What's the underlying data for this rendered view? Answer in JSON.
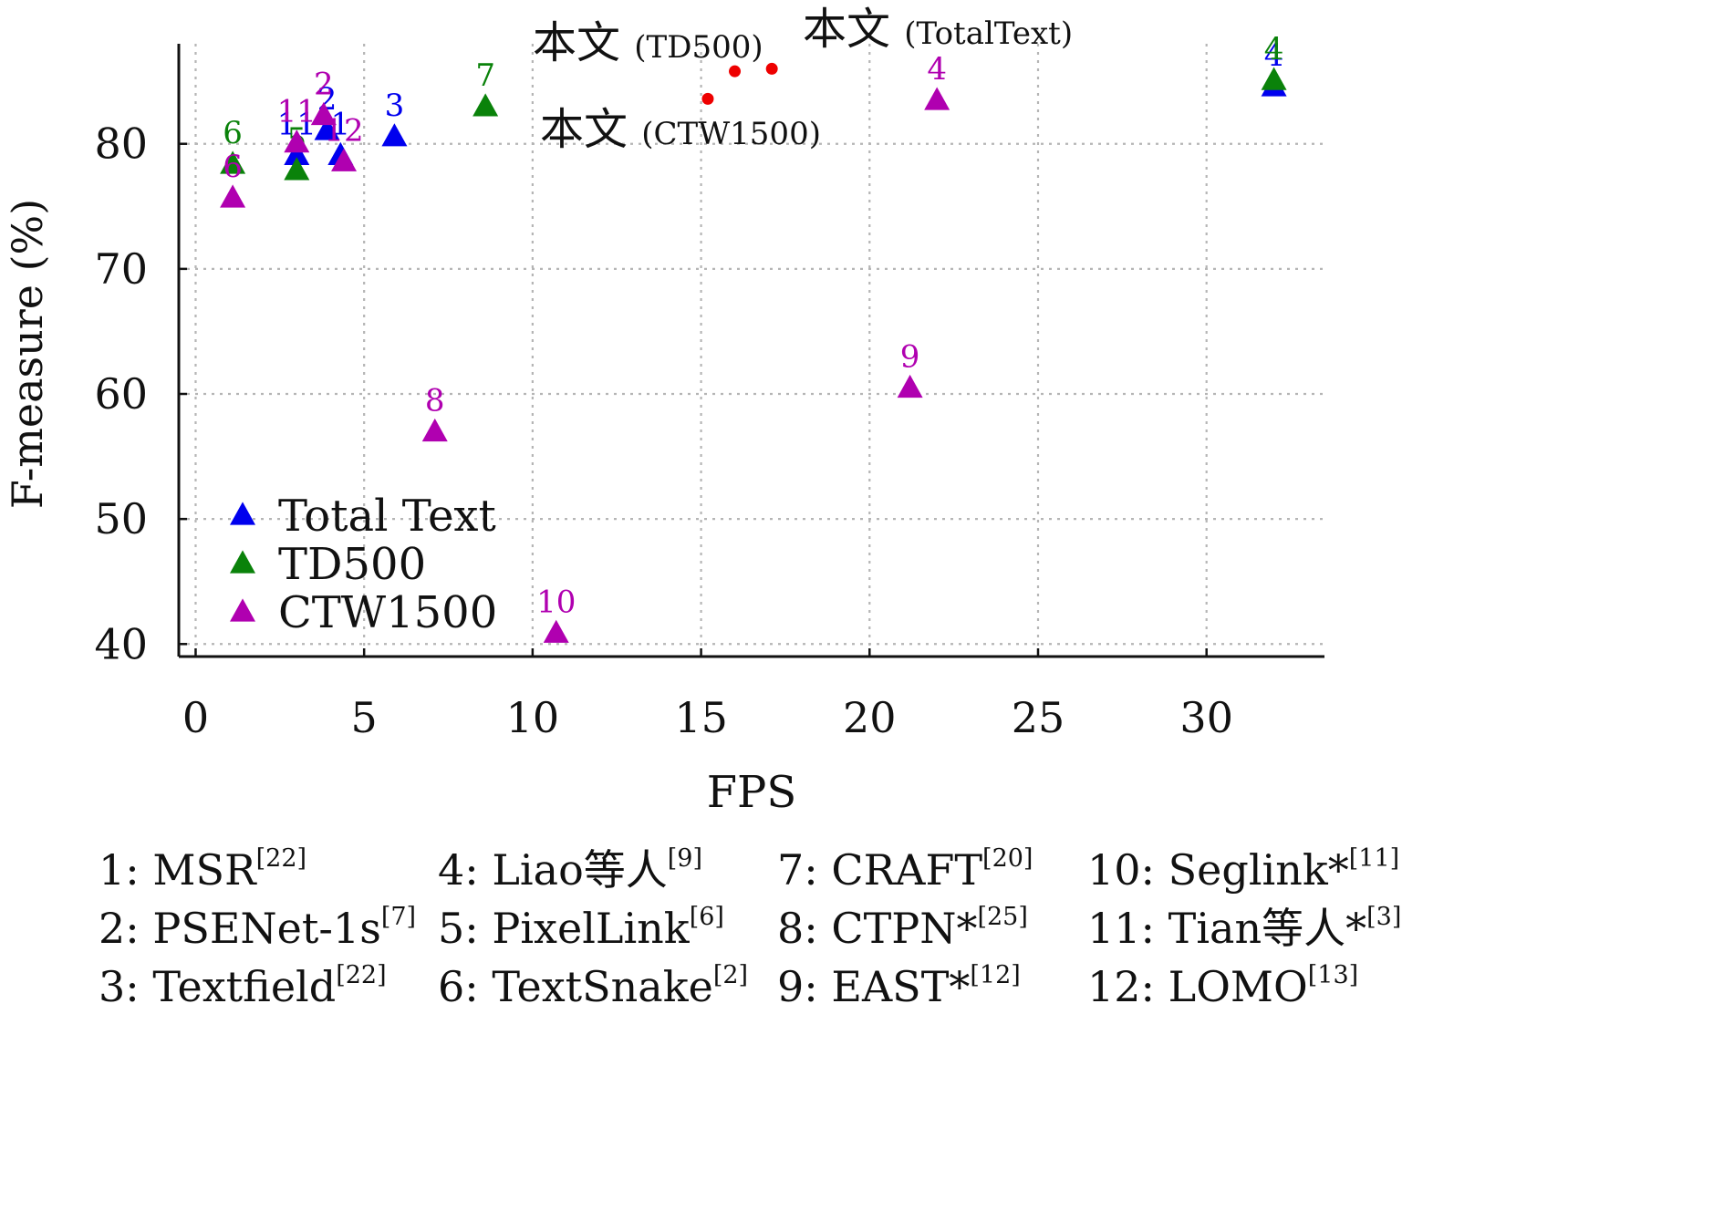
{
  "chart_data": {
    "type": "scatter",
    "xlabel": "FPS",
    "ylabel": "F-measure (%)",
    "xlim": [
      -0.5,
      33.5
    ],
    "ylim": [
      39,
      88
    ],
    "xticks": [
      0,
      5,
      10,
      15,
      20,
      25,
      30
    ],
    "yticks": [
      40,
      50,
      60,
      70,
      80
    ],
    "grid": true,
    "legend_position": "lower-left",
    "series": [
      {
        "name": "Total Text",
        "color": "#0000ee",
        "marker": "triangle",
        "points": [
          {
            "x": 4.3,
            "y": 79.0,
            "label": "1"
          },
          {
            "x": 3.9,
            "y": 81.0,
            "label": "2"
          },
          {
            "x": 5.9,
            "y": 80.5,
            "label": "3"
          },
          {
            "x": 32.0,
            "y": 84.5,
            "label": "4"
          },
          {
            "x": 3.0,
            "y": 79.0,
            "label": "11"
          }
        ]
      },
      {
        "name": "TD500",
        "color": "#0a820a",
        "marker": "triangle",
        "points": [
          {
            "x": 1.1,
            "y": 78.3,
            "label": "6"
          },
          {
            "x": 3.0,
            "y": 77.8,
            "label": "5"
          },
          {
            "x": 8.6,
            "y": 82.9,
            "label": "7"
          },
          {
            "x": 32.0,
            "y": 85.0,
            "label": "4"
          }
        ]
      },
      {
        "name": "CTW1500",
        "color": "#b000b0",
        "marker": "triangle",
        "points": [
          {
            "x": 3.8,
            "y": 82.2,
            "label": "2"
          },
          {
            "x": 3.0,
            "y": 80.0,
            "label": "11"
          },
          {
            "x": 4.4,
            "y": 78.5,
            "label": "12"
          },
          {
            "x": 1.1,
            "y": 75.6,
            "label": "6"
          },
          {
            "x": 7.1,
            "y": 56.9,
            "label": "8"
          },
          {
            "x": 21.2,
            "y": 60.4,
            "label": "9"
          },
          {
            "x": 22.0,
            "y": 83.4,
            "label": "4"
          },
          {
            "x": 10.7,
            "y": 40.8,
            "label": "10"
          }
        ]
      },
      {
        "name": "本文",
        "color": "#ee0000",
        "marker": "circle",
        "points": [
          {
            "x": 15.2,
            "y": 83.6,
            "label": "本文",
            "sublabel": "(CTW1500)"
          },
          {
            "x": 16.0,
            "y": 85.8,
            "label": "本文",
            "sublabel": "(TD500)"
          },
          {
            "x": 17.1,
            "y": 86.0,
            "label": "本文",
            "sublabel": "(TotalText)"
          }
        ]
      }
    ]
  },
  "footer": {
    "columns": [
      [
        {
          "text": "1: MSR",
          "ref": "[22]"
        },
        {
          "text": "2: PSENet-1s",
          "ref": "[7]"
        },
        {
          "text": "3: Textfield",
          "ref": "[22]"
        }
      ],
      [
        {
          "text": "4: Liao等人",
          "ref": "[9]"
        },
        {
          "text": "5: PixelLink",
          "ref": "[6]"
        },
        {
          "text": "6: TextSnake",
          "ref": "[2]"
        }
      ],
      [
        {
          "text": "7: CRAFT",
          "ref": "[20]"
        },
        {
          "text": "8: CTPN*",
          "ref": "[25]"
        },
        {
          "text": "9: EAST*",
          "ref": "[12]"
        }
      ],
      [
        {
          "text": "10: Seglink*",
          "ref": "[11]"
        },
        {
          "text": "11: Tian等人*",
          "ref": "[3]"
        },
        {
          "text": "12: LOMO",
          "ref": "[13]"
        }
      ]
    ]
  }
}
